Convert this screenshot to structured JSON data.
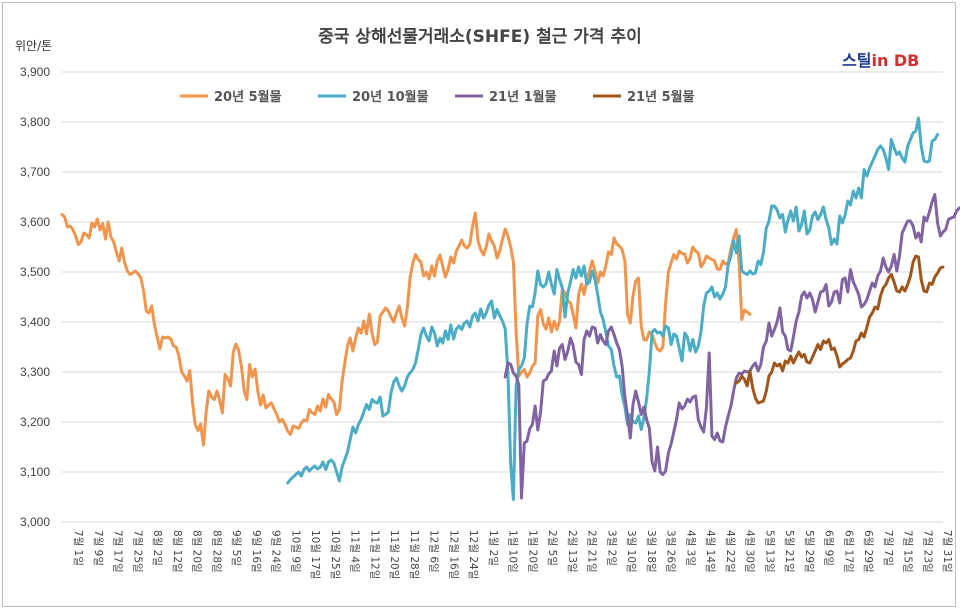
{
  "chart_data": {
    "type": "line",
    "title": "중국 상해선물거래소(SHFE) 철근 가격 추이",
    "unit_label": "위안/톤",
    "brand": {
      "part1": "스틸",
      "part2": "in DB"
    },
    "ylim": [
      3000,
      3900
    ],
    "yticks": [
      "3,000",
      "3,100",
      "3,200",
      "3,300",
      "3,400",
      "3,500",
      "3,600",
      "3,700",
      "3,800",
      "3,900"
    ],
    "grid": true,
    "legend_position": "top",
    "x_tick_labels": [
      "7월 1일",
      "7월 9일",
      "7월 17일",
      "7월 25일",
      "8월 2일",
      "8월 12일",
      "8월 20일",
      "8월 28일",
      "9월 5일",
      "9월 16일",
      "9월 24일",
      "10월 9일",
      "10월 17일",
      "10월 25일",
      "11월 4일",
      "11월 12일",
      "11월 20일",
      "11월 28일",
      "12월 6일",
      "12월 16일",
      "12월 24일",
      "1월 2일",
      "1월 10일",
      "1월 20일",
      "2월 5일",
      "2월 13일",
      "2월 21일",
      "3월 2일",
      "3월 10일",
      "3월 18일",
      "3월 26일",
      "4월 3일",
      "4월 14일",
      "4월 22일",
      "4월 30일",
      "5월 13일",
      "5월 21일",
      "5월 29일",
      "6월 9일",
      "6월 17일",
      "6월 29일",
      "7월 7일",
      "7월 15일",
      "7월 23일",
      "7월 31일"
    ],
    "series": [
      {
        "name": "20년 5월물",
        "color": "#f0954d",
        "start_index": 0,
        "values": [
          3615,
          3610,
          3590,
          3592,
          3585,
          3572,
          3555,
          3560,
          3578,
          3575,
          3568,
          3598,
          3590,
          3606,
          3584,
          3597,
          3566,
          3600,
          3570,
          3560,
          3540,
          3522,
          3548,
          3520,
          3502,
          3495,
          3498,
          3502,
          3496,
          3488,
          3462,
          3422,
          3418,
          3432,
          3394,
          3370,
          3346,
          3370,
          3368,
          3370,
          3366,
          3352,
          3350,
          3332,
          3300,
          3292,
          3282,
          3303,
          3240,
          3195,
          3183,
          3196,
          3154,
          3220,
          3262,
          3250,
          3245,
          3262,
          3243,
          3218,
          3295,
          3286,
          3272,
          3340,
          3356,
          3343,
          3310,
          3262,
          3245,
          3315,
          3290,
          3306,
          3262,
          3234,
          3254,
          3228,
          3234,
          3238,
          3226,
          3215,
          3200,
          3205,
          3195,
          3182,
          3175,
          3192,
          3190,
          3187,
          3198,
          3204,
          3202,
          3225,
          3218,
          3215,
          3232,
          3222,
          3246,
          3230,
          3255,
          3246,
          3240,
          3215,
          3225,
          3282,
          3318,
          3352,
          3368,
          3342,
          3368,
          3388,
          3378,
          3402,
          3376,
          3416,
          3378,
          3355,
          3360,
          3412,
          3420,
          3428,
          3422,
          3410,
          3400,
          3418,
          3432,
          3408,
          3392,
          3428,
          3488,
          3518,
          3535,
          3525,
          3520,
          3492,
          3500,
          3486,
          3512,
          3492,
          3522,
          3534,
          3512,
          3490,
          3505,
          3530,
          3518,
          3542,
          3552,
          3564,
          3552,
          3548,
          3556,
          3592,
          3618,
          3562,
          3545,
          3534,
          3550,
          3576,
          3562,
          3552,
          3528,
          3543,
          3565,
          3586,
          3572,
          3550,
          3520,
          3380,
          3292,
          3300,
          3305,
          3290,
          3298,
          3312,
          3318,
          3412,
          3425,
          3396,
          3386,
          3408,
          3380,
          3402,
          3385,
          3402,
          3466,
          3458,
          3442,
          3438,
          3415,
          3388,
          3455,
          3476,
          3455,
          3482,
          3502,
          3522,
          3502,
          3478,
          3500,
          3492,
          3512,
          3540,
          3535,
          3568,
          3556,
          3552,
          3545,
          3522,
          3415,
          3398,
          3452,
          3482,
          3488,
          3392,
          3365,
          3364,
          3380,
          3375,
          3358,
          3346,
          3342,
          3350,
          3438,
          3500,
          3518,
          3535,
          3526,
          3542,
          3537,
          3536,
          3518,
          3528,
          3550,
          3542,
          3538,
          3510,
          3518,
          3532,
          3528,
          3525,
          3522,
          3506,
          3505,
          3522,
          3516,
          3518,
          3546,
          3568,
          3585,
          3518,
          3405,
          3424,
          3420,
          3415
        ]
      },
      {
        "name": "20년 10월물",
        "color": "#4aacc5",
        "start_index": 83,
        "values": [
          3078,
          3085,
          3090,
          3095,
          3100,
          3092,
          3105,
          3110,
          3102,
          3108,
          3112,
          3106,
          3110,
          3120,
          3105,
          3120,
          3124,
          3118,
          3100,
          3082,
          3110,
          3125,
          3140,
          3165,
          3190,
          3178,
          3195,
          3205,
          3220,
          3235,
          3225,
          3245,
          3240,
          3238,
          3250,
          3212,
          3215,
          3220,
          3258,
          3280,
          3288,
          3272,
          3262,
          3272,
          3290,
          3298,
          3305,
          3318,
          3345,
          3375,
          3388,
          3372,
          3362,
          3390,
          3378,
          3352,
          3368,
          3358,
          3382,
          3365,
          3394,
          3366,
          3386,
          3392,
          3385,
          3398,
          3402,
          3390,
          3412,
          3418,
          3402,
          3426,
          3408,
          3418,
          3434,
          3442,
          3408,
          3425,
          3412,
          3402,
          3386,
          3300,
          3115,
          3045,
          3270,
          3305,
          3312,
          3328,
          3395,
          3432,
          3430,
          3458,
          3502,
          3475,
          3470,
          3476,
          3500,
          3476,
          3456,
          3505,
          3485,
          3468,
          3410,
          3458,
          3480,
          3505,
          3488,
          3510,
          3492,
          3512,
          3475,
          3480,
          3502,
          3485,
          3455,
          3420,
          3405,
          3380,
          3352,
          3345,
          3312,
          3290,
          3292,
          3255,
          3230,
          3195,
          3215,
          3200,
          3198,
          3212,
          3185,
          3208,
          3246,
          3300,
          3380,
          3385,
          3378,
          3380,
          3372,
          3392,
          3388,
          3355,
          3376,
          3372,
          3348,
          3322,
          3378,
          3370,
          3342,
          3365,
          3340,
          3352,
          3380,
          3432,
          3458,
          3462,
          3470,
          3450,
          3458,
          3446,
          3456,
          3470,
          3515,
          3532,
          3562,
          3538,
          3572,
          3502,
          3498,
          3495,
          3502,
          3496,
          3498,
          3522,
          3515,
          3540,
          3588,
          3602,
          3632,
          3632,
          3624,
          3608,
          3615,
          3580,
          3604,
          3622,
          3602,
          3630,
          3582,
          3595,
          3622,
          3576,
          3584,
          3612,
          3620,
          3605,
          3615,
          3630,
          3605,
          3588,
          3555,
          3566,
          3556,
          3612,
          3598,
          3614,
          3642,
          3634,
          3662,
          3648,
          3668,
          3648,
          3705,
          3692,
          3708,
          3720,
          3732,
          3745,
          3752,
          3745,
          3728,
          3705,
          3765,
          3748,
          3735,
          3740,
          3728,
          3720,
          3752,
          3765,
          3778,
          3782,
          3808,
          3752,
          3722,
          3720,
          3722,
          3762,
          3765,
          3775
        ]
      },
      {
        "name": "21년 1월물",
        "color": "#8064a2",
        "start_index": 163,
        "values": [
          3290,
          3318,
          3315,
          3298,
          3292,
          3274,
          3048,
          3158,
          3162,
          3186,
          3195,
          3232,
          3184,
          3220,
          3282,
          3285,
          3296,
          3302,
          3342,
          3312,
          3348,
          3355,
          3325,
          3342,
          3368,
          3352,
          3320,
          3315,
          3295,
          3365,
          3382,
          3372,
          3390,
          3388,
          3358,
          3375,
          3362,
          3355,
          3382,
          3390,
          3375,
          3358,
          3345,
          3312,
          3250,
          3212,
          3168,
          3235,
          3262,
          3240,
          3215,
          3230,
          3205,
          3188,
          3120,
          3102,
          3150,
          3100,
          3095,
          3102,
          3138,
          3156,
          3180,
          3205,
          3238,
          3226,
          3232,
          3246,
          3240,
          3250,
          3252,
          3205,
          3190,
          3180,
          3228,
          3338,
          3172,
          3165,
          3178,
          3162,
          3160,
          3190,
          3212,
          3232,
          3262,
          3288,
          3298,
          3296,
          3302,
          3300,
          3302,
          3312,
          3318,
          3302,
          3315,
          3350,
          3362,
          3398,
          3372,
          3385,
          3400,
          3428,
          3380,
          3372,
          3345,
          3342,
          3370,
          3402,
          3420,
          3452,
          3460,
          3448,
          3458,
          3445,
          3420,
          3440,
          3460,
          3462,
          3475,
          3432,
          3440,
          3460,
          3462,
          3438,
          3485,
          3488,
          3460,
          3505,
          3480,
          3468,
          3455,
          3430,
          3435,
          3445,
          3462,
          3478,
          3470,
          3492,
          3502,
          3528,
          3510,
          3500,
          3512,
          3535,
          3502,
          3532,
          3578,
          3590,
          3602,
          3602,
          3592,
          3568,
          3578,
          3560,
          3610,
          3602,
          3620,
          3640,
          3655,
          3598,
          3572,
          3580,
          3585,
          3605,
          3608,
          3610,
          3622,
          3628
        ]
      },
      {
        "name": "21년 5월물",
        "color": "#a0561b",
        "start_index": 248,
        "values": [
          3278,
          3282,
          3292,
          3285,
          3272,
          3302,
          3268,
          3248,
          3238,
          3240,
          3242,
          3262,
          3292,
          3300,
          3318,
          3312,
          3316,
          3302,
          3322,
          3318,
          3332,
          3318,
          3330,
          3340,
          3330,
          3335,
          3320,
          3318,
          3330,
          3342,
          3355,
          3345,
          3362,
          3358,
          3365,
          3345,
          3348,
          3332,
          3310,
          3316,
          3320,
          3325,
          3328,
          3342,
          3362,
          3365,
          3378,
          3370,
          3390,
          3410,
          3418,
          3430,
          3426,
          3452,
          3468,
          3475,
          3488,
          3495,
          3480,
          3462,
          3460,
          3470,
          3462,
          3475,
          3492,
          3520,
          3532,
          3530,
          3485,
          3462,
          3460,
          3478,
          3475,
          3490,
          3498,
          3508,
          3510
        ]
      }
    ]
  }
}
